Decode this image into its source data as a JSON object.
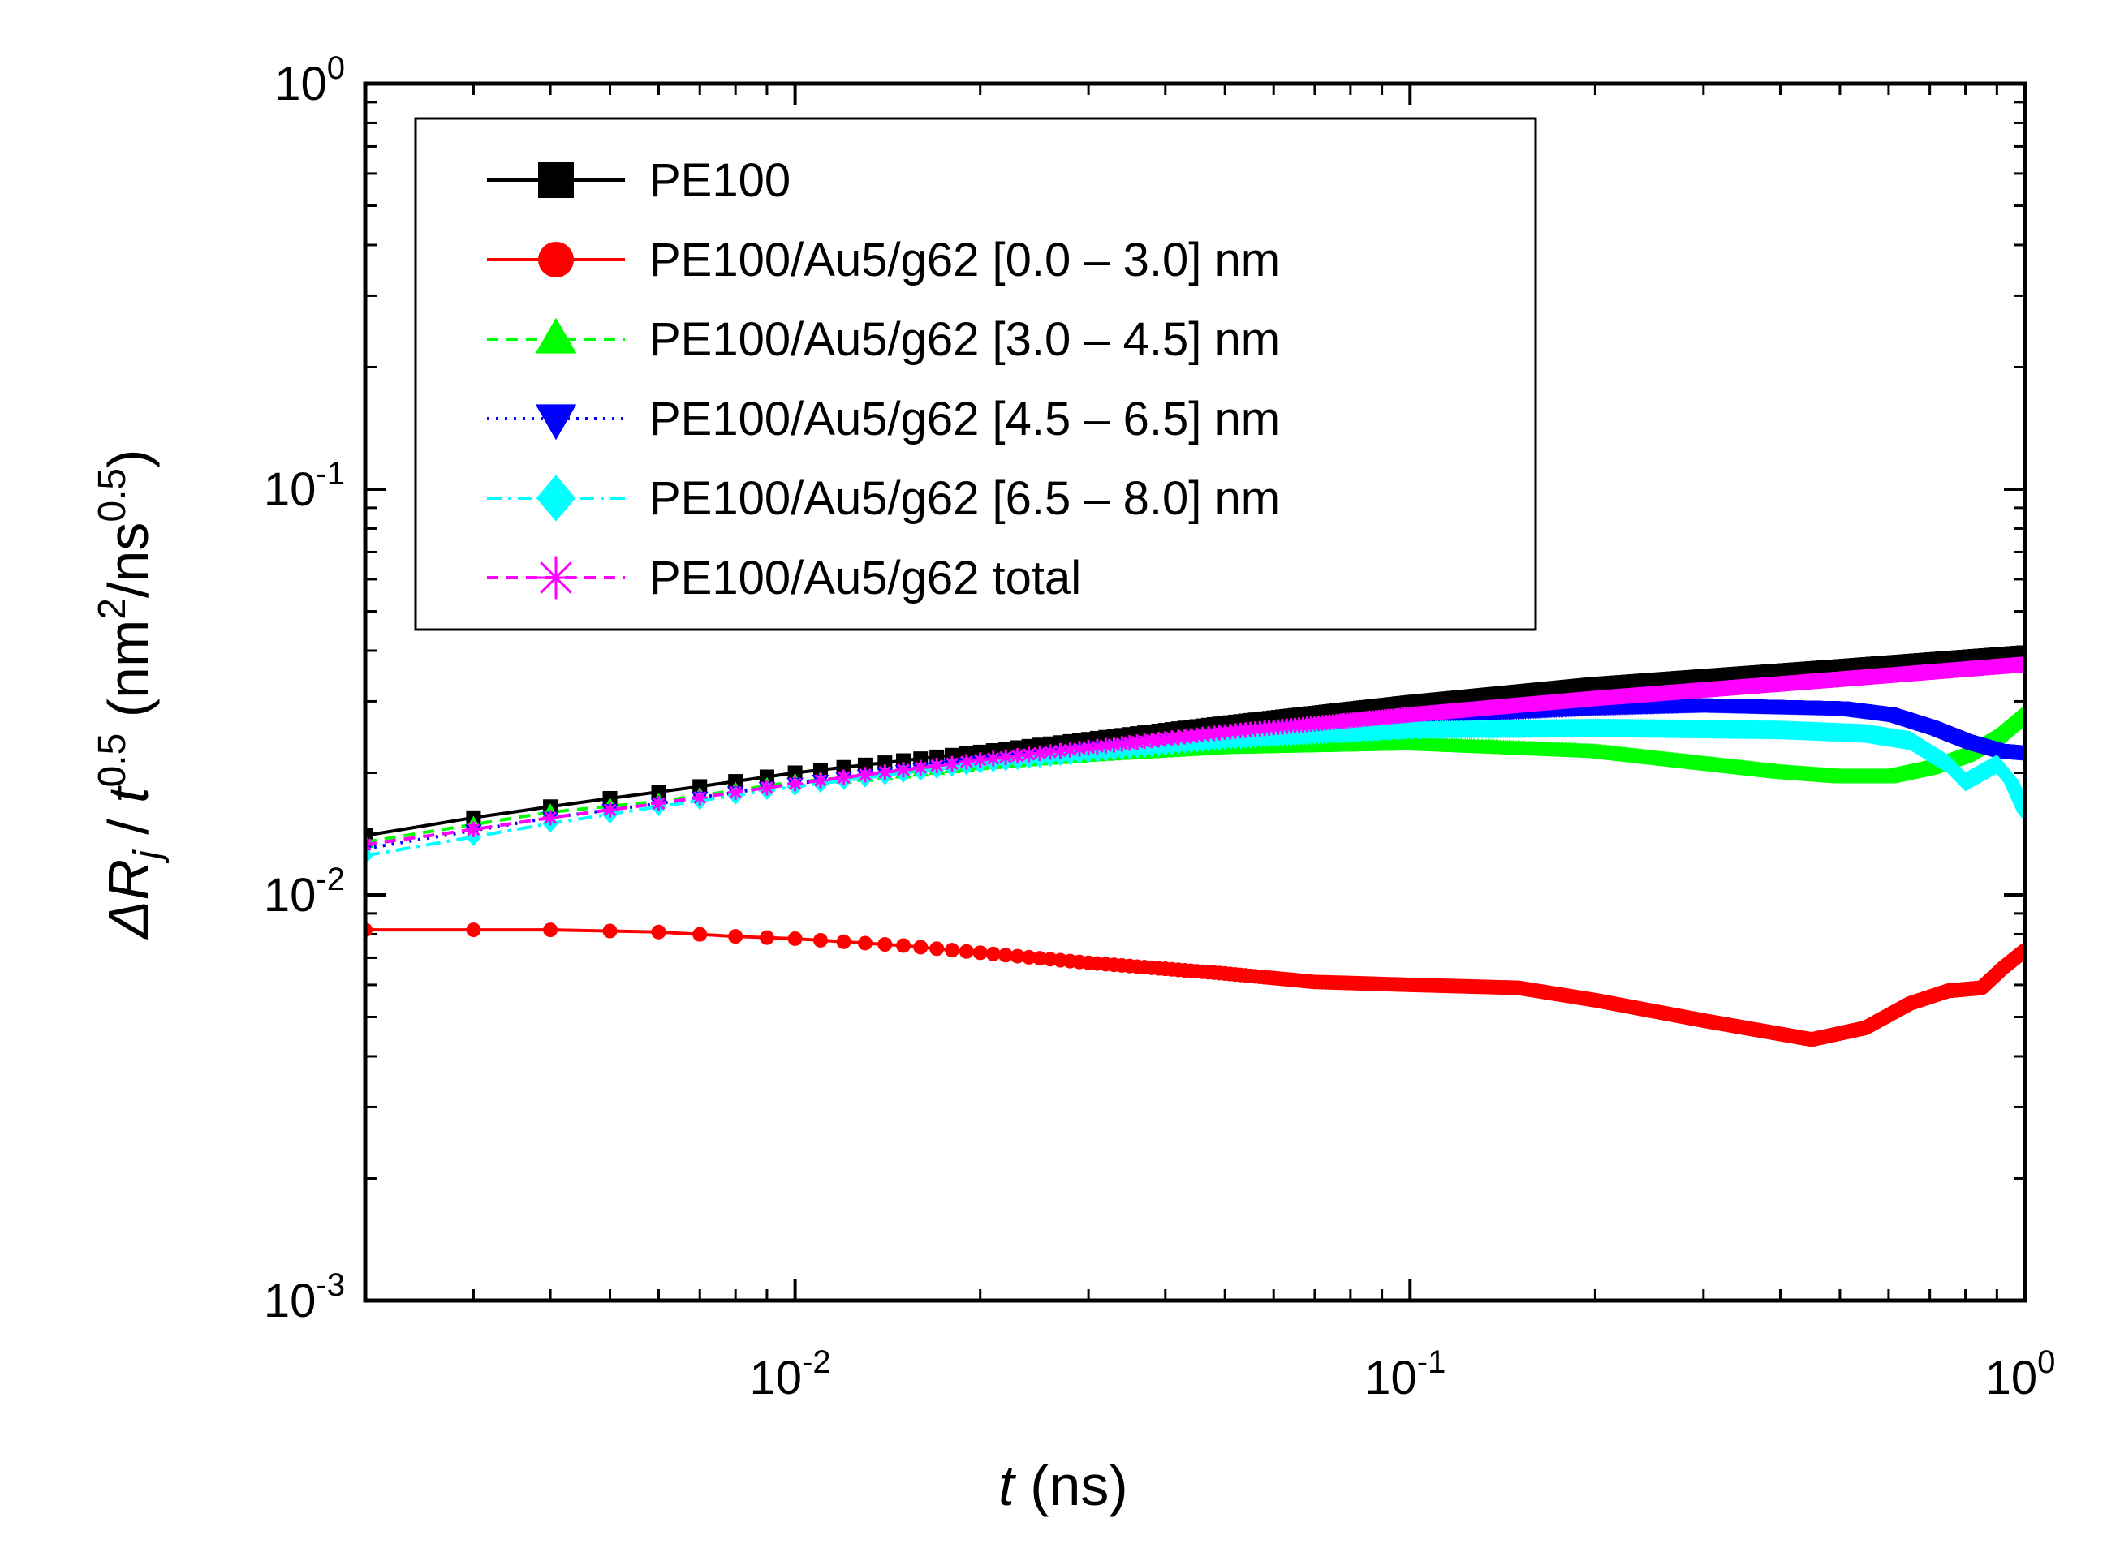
{
  "chart_data": {
    "type": "line",
    "xscale": "log",
    "yscale": "log",
    "xlim": [
      0.002,
      1
    ],
    "ylim": [
      0.001,
      1
    ],
    "xlabel": "t (ns)",
    "ylabel": "ΔRj / t^0.5 (nm^2/ns^0.5)",
    "x_ticks": [
      {
        "value": 0.01,
        "base": "10",
        "exp": "-2"
      },
      {
        "value": 0.1,
        "base": "10",
        "exp": "-1"
      },
      {
        "value": 1,
        "base": "10",
        "exp": "0"
      }
    ],
    "y_ticks": [
      {
        "value": 0.001,
        "base": "10",
        "exp": "-3"
      },
      {
        "value": 0.01,
        "base": "10",
        "exp": "-2"
      },
      {
        "value": 0.1,
        "base": "10",
        "exp": "-1"
      },
      {
        "value": 1,
        "base": "10",
        "exp": "0"
      }
    ],
    "legend": {
      "position": "top-left"
    },
    "series": [
      {
        "name": "PE100",
        "color": "#000000",
        "marker": "square",
        "line": "solid",
        "x": [
          0.002,
          0.003,
          0.004,
          0.005,
          0.007,
          0.01,
          0.02,
          0.05,
          0.1,
          0.2,
          0.5,
          1.0
        ],
        "y": [
          0.014,
          0.0155,
          0.0165,
          0.0173,
          0.0185,
          0.02,
          0.0225,
          0.0265,
          0.0298,
          0.033,
          0.0365,
          0.0395
        ]
      },
      {
        "name": "PE100/Au5/g62 [0.0 – 3.0] nm",
        "color": "#ff0000",
        "marker": "circle",
        "line": "solid",
        "x": [
          0.002,
          0.004,
          0.006,
          0.008,
          0.01,
          0.015,
          0.02,
          0.03,
          0.05,
          0.07,
          0.1,
          0.15,
          0.2,
          0.3,
          0.45,
          0.55,
          0.65,
          0.75,
          0.85,
          0.92,
          1.0
        ],
        "y": [
          0.0082,
          0.0082,
          0.0081,
          0.0079,
          0.0078,
          0.0075,
          0.0072,
          0.0068,
          0.0064,
          0.0061,
          0.006,
          0.0059,
          0.0055,
          0.0049,
          0.0044,
          0.0047,
          0.0054,
          0.0058,
          0.0059,
          0.0066,
          0.0073
        ]
      },
      {
        "name": "PE100/Au5/g62 [3.0 – 4.5] nm",
        "color": "#00ff00",
        "marker": "triangle-up",
        "line": "dashed",
        "x": [
          0.002,
          0.004,
          0.006,
          0.01,
          0.015,
          0.02,
          0.03,
          0.05,
          0.1,
          0.2,
          0.3,
          0.4,
          0.5,
          0.6,
          0.7,
          0.8,
          0.9,
          1.0
        ],
        "y": [
          0.0135,
          0.016,
          0.017,
          0.019,
          0.02,
          0.021,
          0.022,
          0.023,
          0.0235,
          0.0225,
          0.021,
          0.02,
          0.0195,
          0.0195,
          0.0205,
          0.022,
          0.0245,
          0.028
        ]
      },
      {
        "name": "PE100/Au5/g62 [4.5 – 6.5] nm",
        "color": "#0000ff",
        "marker": "triangle-down",
        "line": "dotted",
        "x": [
          0.002,
          0.004,
          0.006,
          0.01,
          0.02,
          0.05,
          0.1,
          0.2,
          0.3,
          0.5,
          0.6,
          0.7,
          0.8,
          0.9,
          1.0
        ],
        "y": [
          0.013,
          0.0155,
          0.0168,
          0.0188,
          0.0213,
          0.025,
          0.0275,
          0.029,
          0.0295,
          0.029,
          0.028,
          0.026,
          0.024,
          0.0228,
          0.0225
        ]
      },
      {
        "name": "PE100/Au5/g62 [6.5 – 8.0] nm",
        "color": "#00ffff",
        "marker": "diamond",
        "line": "dash-dot",
        "x": [
          0.002,
          0.004,
          0.006,
          0.01,
          0.02,
          0.05,
          0.1,
          0.2,
          0.4,
          0.55,
          0.65,
          0.75,
          0.8,
          0.85,
          0.9,
          0.95,
          1.0
        ],
        "y": [
          0.0125,
          0.015,
          0.0165,
          0.0185,
          0.021,
          0.024,
          0.0255,
          0.0258,
          0.0255,
          0.025,
          0.024,
          0.021,
          0.019,
          0.02,
          0.021,
          0.019,
          0.016
        ]
      },
      {
        "name": "PE100/Au5/g62 total",
        "color": "#ff00ff",
        "marker": "asterisk",
        "line": "dashed",
        "x": [
          0.002,
          0.003,
          0.004,
          0.006,
          0.01,
          0.02,
          0.05,
          0.1,
          0.2,
          0.5,
          1.0
        ],
        "y": [
          0.0133,
          0.0145,
          0.0155,
          0.0168,
          0.0188,
          0.0215,
          0.0252,
          0.0278,
          0.0305,
          0.034,
          0.037
        ]
      }
    ]
  }
}
